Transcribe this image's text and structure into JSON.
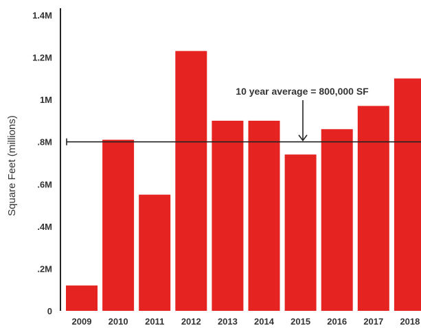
{
  "chart_data": {
    "type": "bar",
    "categories": [
      "2009",
      "2010",
      "2011",
      "2012",
      "2013",
      "2014",
      "2015",
      "2016",
      "2017",
      "2018"
    ],
    "values": [
      0.12,
      0.81,
      0.55,
      1.23,
      0.9,
      0.9,
      0.74,
      0.86,
      0.97,
      1.1
    ],
    "xlabel": "",
    "ylabel": "Square Feet (millions)",
    "ylim": [
      0,
      1.4
    ],
    "yticks": [
      {
        "value": 0,
        "label": "0"
      },
      {
        "value": 0.2,
        "label": ".2M"
      },
      {
        "value": 0.4,
        "label": ".4M"
      },
      {
        "value": 0.6,
        "label": ".6M"
      },
      {
        "value": 0.8,
        "label": ".8M"
      },
      {
        "value": 1.0,
        "label": "1M"
      },
      {
        "value": 1.2,
        "label": "1.2M"
      },
      {
        "value": 1.4,
        "label": "1.4M"
      }
    ],
    "reference_line": {
      "value": 0.8,
      "label": "10 year average = 800,000 SF"
    },
    "grid": false,
    "legend": "none",
    "bar_color": "#e52421",
    "line_color": "#222222",
    "text_color": "#333333"
  }
}
